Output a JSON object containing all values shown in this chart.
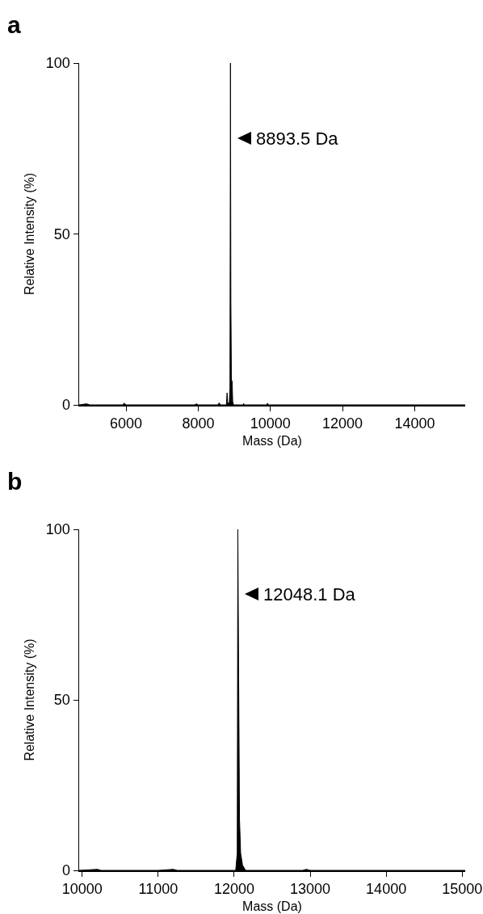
{
  "chart_data": [
    {
      "type": "area",
      "title": "a",
      "xlabel": "Mass (Da)",
      "ylabel": "Relative Intensity (%)",
      "color": "#000000",
      "x": [
        4700,
        4900,
        5000,
        5900,
        5950,
        6000,
        7900,
        7950,
        8000,
        8550,
        8580,
        8610,
        8780,
        8800,
        8815,
        8860,
        8880,
        8893.5,
        8905,
        8920,
        8940,
        8955,
        8980,
        9250,
        9260,
        9270,
        9900,
        9920,
        9940,
        15400
      ],
      "values": [
        0,
        0.3,
        0,
        0,
        0.5,
        0,
        0,
        0.3,
        0,
        0,
        0.6,
        0,
        0,
        3.5,
        0.5,
        0.5,
        5,
        100,
        30,
        7,
        7,
        1,
        0,
        0,
        0.4,
        0,
        0,
        0.5,
        0,
        0
      ],
      "xlim": [
        4700,
        15400
      ],
      "xticks": [
        6000,
        8000,
        10000,
        12000,
        14000
      ],
      "ylim": [
        0,
        100
      ],
      "yticks": [
        0,
        50,
        100
      ],
      "annotations": [
        {
          "text": "8893.5 Da",
          "x": 8893.5,
          "y": 78
        }
      ]
    },
    {
      "type": "area",
      "title": "b",
      "xlabel": "Mass (Da)",
      "ylabel": "Relative Intensity (%)",
      "color": "#000000",
      "x": [
        9960,
        10200,
        10250,
        11000,
        11200,
        11250,
        12020,
        12040,
        12048.1,
        12058,
        12070,
        12085,
        12110,
        12150,
        12900,
        12950,
        13000,
        15040
      ],
      "values": [
        0,
        0.3,
        0,
        0,
        0.3,
        0,
        0,
        5,
        100,
        60,
        15,
        5,
        1.5,
        0,
        0,
        0.3,
        0,
        0
      ],
      "xlim": [
        9960,
        15040
      ],
      "xticks": [
        10000,
        11000,
        12000,
        13000,
        14000,
        15000
      ],
      "ylim": [
        0,
        100
      ],
      "yticks": [
        0,
        50,
        100
      ],
      "annotations": [
        {
          "text": "12048.1 Da",
          "x": 12048.1,
          "y": 81
        }
      ]
    }
  ]
}
